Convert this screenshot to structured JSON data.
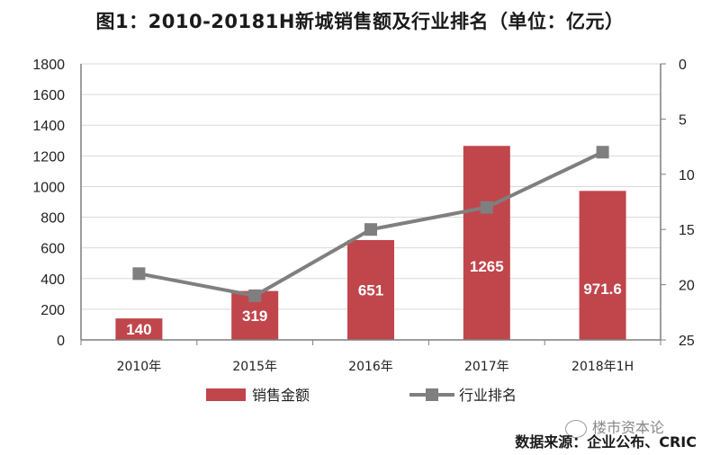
{
  "title": "图1：2010-20181H新城销售额及行业排名（单位：亿元）",
  "source": "数据来源：企业公布、CRIC",
  "watermark": "楼市资本论",
  "colors": {
    "bar": "#c0464c",
    "line": "#7f7f7f",
    "axis": "#7f7f7f",
    "grid": "#d9d9d9"
  },
  "chart_data": {
    "type": "bar",
    "categories": [
      "2010年",
      "2015年",
      "2016年",
      "2017年",
      "2018年1H"
    ],
    "series": [
      {
        "name": "销售金额",
        "type": "bar",
        "axis": "left",
        "values": [
          140,
          319,
          651,
          1265,
          971.6
        ],
        "labels": [
          "140",
          "319",
          "651",
          "1265",
          "971.6"
        ]
      },
      {
        "name": "行业排名",
        "type": "line",
        "axis": "right",
        "values": [
          19,
          21,
          15,
          13,
          8
        ]
      }
    ],
    "ylim": [
      0,
      1800
    ],
    "yticks": [
      0,
      200,
      400,
      600,
      800,
      1000,
      1200,
      1400,
      1600,
      1800
    ],
    "y2lim": [
      0,
      25
    ],
    "y2ticks": [
      0,
      5,
      10,
      15,
      20,
      25
    ],
    "y2_inverted": true,
    "grid": true,
    "legend": "bottom"
  }
}
